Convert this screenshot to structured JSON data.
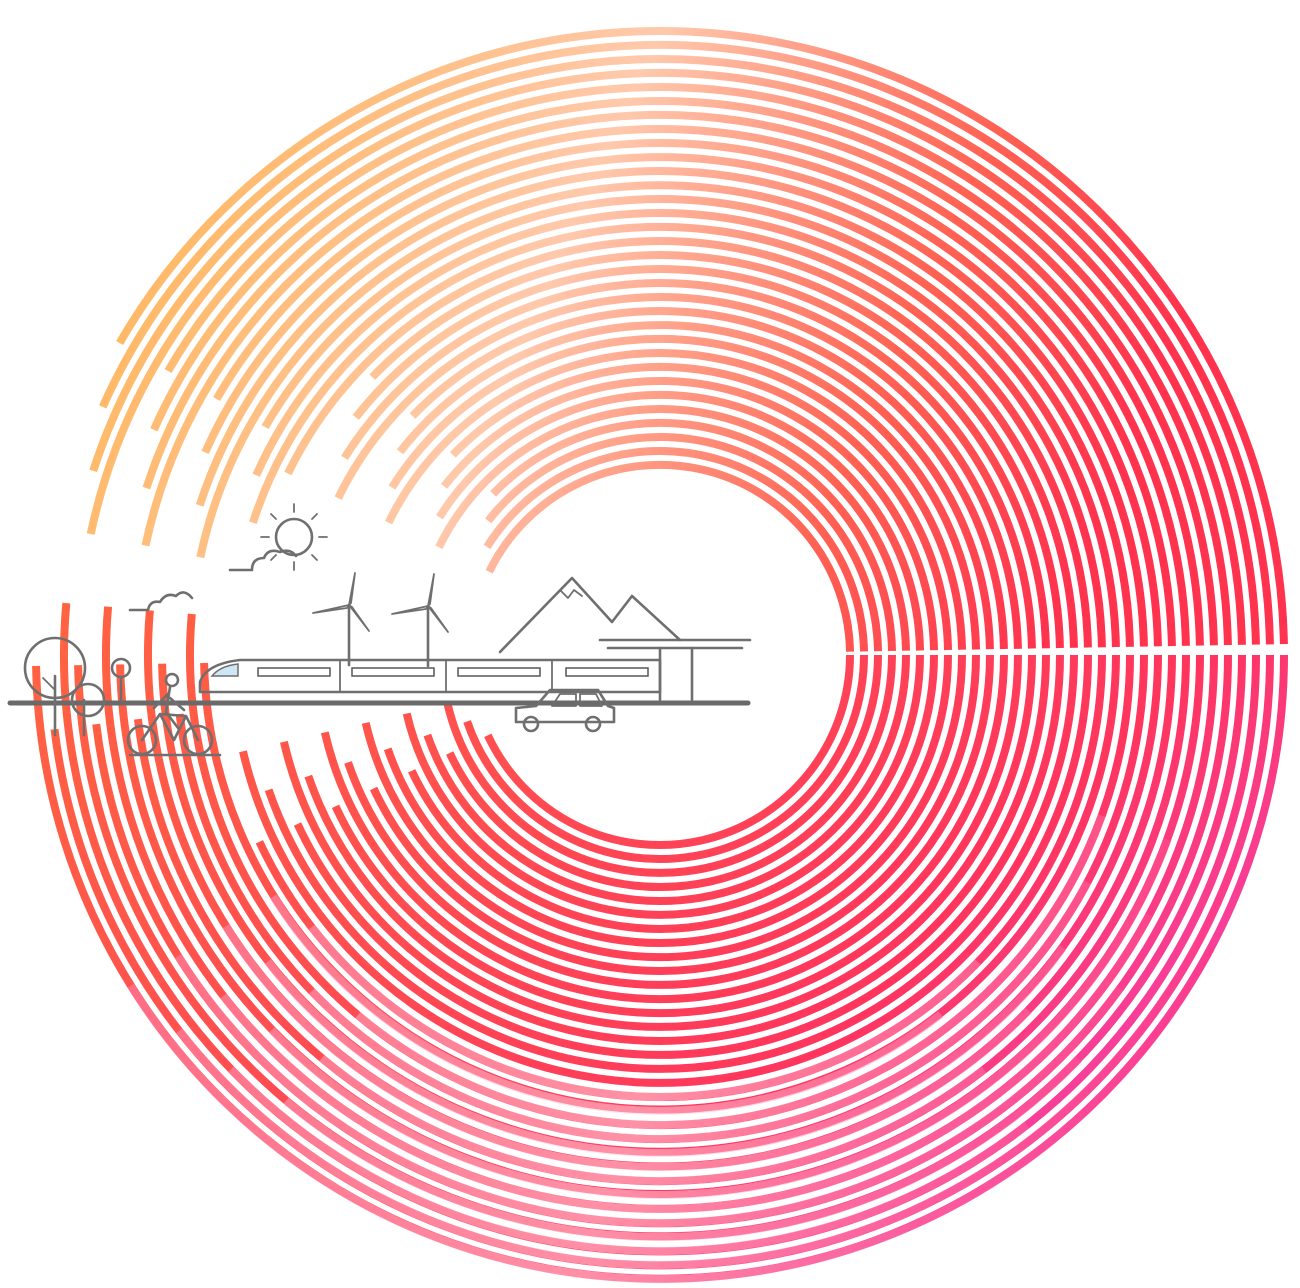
{
  "illustration": {
    "theme": "sustainable-mobility",
    "palette": {
      "orange": "#ff6a2c",
      "amber": "#ffb45a",
      "peach": "#ffc6a8",
      "coral": "#ff5a4a",
      "red": "#ff2845",
      "pink": "#ff7fb0",
      "magenta": "#f03cc8",
      "blush": "#ffd9e4",
      "line": "#6f6f6f"
    },
    "icons": [
      "sun-icon",
      "cloud-icon",
      "wind-turbine-icon",
      "mountain-icon",
      "tree-icon",
      "cyclist-icon",
      "train-icon",
      "car-icon",
      "station-canopy-icon"
    ]
  }
}
